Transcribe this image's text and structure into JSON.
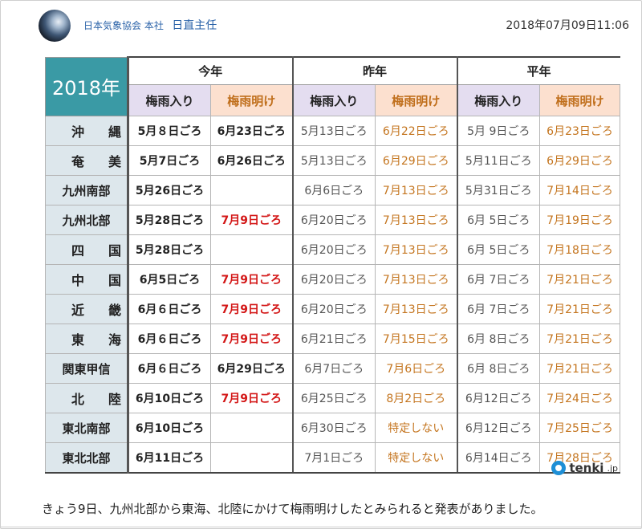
{
  "header": {
    "org": "日本気象協会 本社",
    "author": "日直主任",
    "timestamp": "2018年07月09日11:06"
  },
  "table": {
    "year_label": "2018年",
    "groups": [
      "今年",
      "昨年",
      "平年"
    ],
    "sub_headers": {
      "iri": "梅雨入り",
      "ake": "梅雨明け"
    },
    "rows": [
      {
        "region": "沖縄",
        "spread": true,
        "cur_iri": "5月８日ごろ",
        "cur_ake": "6月23日ごろ",
        "cur_ake_red": false,
        "last_iri": "5月13日ごろ",
        "last_ake": "6月22日ごろ",
        "norm_iri": "5月 9日ごろ",
        "norm_ake": "6月23日ごろ"
      },
      {
        "region": "奄美",
        "spread": true,
        "cur_iri": "5月7日ごろ",
        "cur_ake": "6月26日ごろ",
        "cur_ake_red": false,
        "last_iri": "5月13日ごろ",
        "last_ake": "6月29日ごろ",
        "norm_iri": "5月11日ごろ",
        "norm_ake": "6月29日ごろ"
      },
      {
        "region": "九州南部",
        "spread": false,
        "cur_iri": "5月26日ごろ",
        "cur_ake": "",
        "cur_ake_red": false,
        "last_iri": "6月6日ごろ",
        "last_ake": "7月13日ごろ",
        "norm_iri": "5月31日ごろ",
        "norm_ake": "7月14日ごろ"
      },
      {
        "region": "九州北部",
        "spread": false,
        "cur_iri": "5月28日ごろ",
        "cur_ake": "7月9日ごろ",
        "cur_ake_red": true,
        "last_iri": "6月20日ごろ",
        "last_ake": "7月13日ごろ",
        "norm_iri": "6月 5日ごろ",
        "norm_ake": "7月19日ごろ"
      },
      {
        "region": "四国",
        "spread": true,
        "cur_iri": "5月28日ごろ",
        "cur_ake": "",
        "cur_ake_red": false,
        "last_iri": "6月20日ごろ",
        "last_ake": "7月13日ごろ",
        "norm_iri": "6月 5日ごろ",
        "norm_ake": "7月18日ごろ"
      },
      {
        "region": "中国",
        "spread": true,
        "cur_iri": "6月5日ごろ",
        "cur_ake": "7月9日ごろ",
        "cur_ake_red": true,
        "last_iri": "6月20日ごろ",
        "last_ake": "7月13日ごろ",
        "norm_iri": "6月 7日ごろ",
        "norm_ake": "7月21日ごろ"
      },
      {
        "region": "近畿",
        "spread": true,
        "cur_iri": "6月６日ごろ",
        "cur_ake": "7月9日ごろ",
        "cur_ake_red": true,
        "last_iri": "6月20日ごろ",
        "last_ake": "7月13日ごろ",
        "norm_iri": "6月 7日ごろ",
        "norm_ake": "7月21日ごろ"
      },
      {
        "region": "東海",
        "spread": true,
        "cur_iri": "6月６日ごろ",
        "cur_ake": "7月9日ごろ",
        "cur_ake_red": true,
        "last_iri": "6月21日ごろ",
        "last_ake": "7月15日ごろ",
        "norm_iri": "6月 8日ごろ",
        "norm_ake": "7月21日ごろ"
      },
      {
        "region": "関東甲信",
        "spread": false,
        "cur_iri": "6月６日ごろ",
        "cur_ake": "6月29日ごろ",
        "cur_ake_red": false,
        "last_iri": "6月7日ごろ",
        "last_ake": "7月6日ごろ",
        "norm_iri": "6月 8日ごろ",
        "norm_ake": "7月21日ごろ"
      },
      {
        "region": "北陸",
        "spread": true,
        "cur_iri": "6月10日ごろ",
        "cur_ake": "7月9日ごろ",
        "cur_ake_red": true,
        "last_iri": "6月25日ごろ",
        "last_ake": "8月2日ごろ",
        "norm_iri": "6月12日ごろ",
        "norm_ake": "7月24日ごろ"
      },
      {
        "region": "東北南部",
        "spread": false,
        "cur_iri": "6月10日ごろ",
        "cur_ake": "",
        "cur_ake_red": false,
        "last_iri": "6月30日ごろ",
        "last_ake": "特定しない",
        "norm_iri": "6月12日ごろ",
        "norm_ake": "7月25日ごろ"
      },
      {
        "region": "東北北部",
        "spread": false,
        "cur_iri": "6月11日ごろ",
        "cur_ake": "",
        "cur_ake_red": false,
        "last_iri": "7月1日ごろ",
        "last_ake": "特定しない",
        "norm_iri": "6月14日ごろ",
        "norm_ake": "7月28日ごろ"
      }
    ]
  },
  "brand": {
    "name": "tenki",
    "suffix": ".jp",
    "icon": "sun-logo-icon"
  },
  "caption": "きょう9日、九州北部から東海、北陸にかけて梅雨明けしたとみられると発表がありました。"
}
